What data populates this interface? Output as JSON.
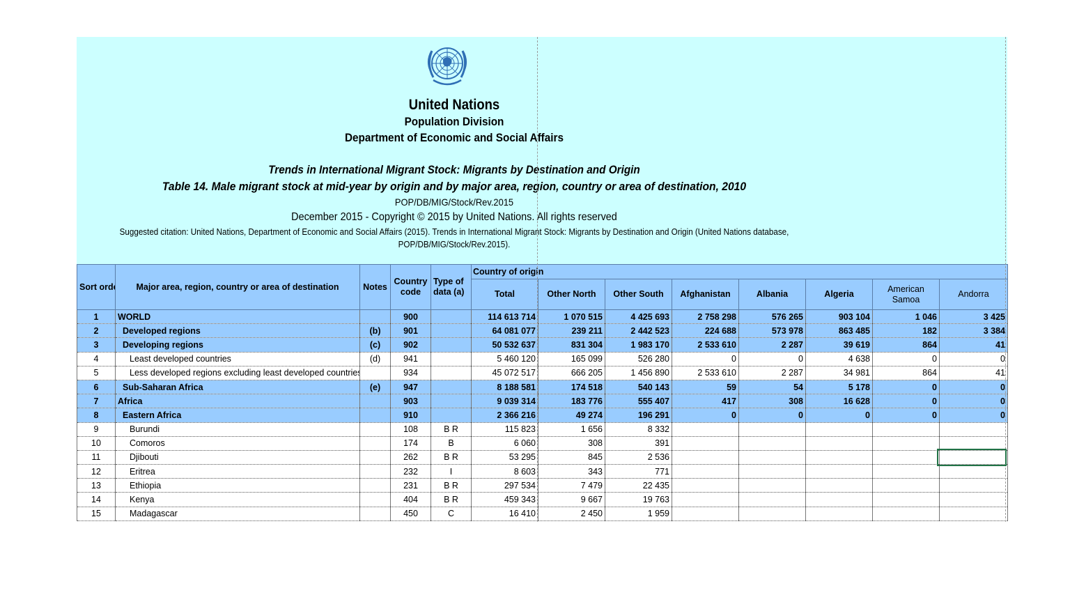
{
  "header": {
    "organization": "United Nations",
    "division": "Population Division",
    "department": "Department of Economic and Social Affairs",
    "report_title": "Trends in International Migrant Stock: Migrants by Destination and Origin",
    "table_title": "Table 14. Male migrant stock at mid-year by origin and by major area, region, country or area of destination, 2010",
    "code": "POP/DB/MIG/Stock/Rev.2015",
    "copyright": "December 2015 - Copyright © 2015 by United Nations. All rights reserved",
    "citation_line1": "Suggested citation: United Nations, Department of Economic and Social Affairs (2015). Trends in International Migrant Stock: Migrants by Destination and Origin (United Nations database,",
    "citation_line2": "POP/DB/MIG/Stock/Rev.2015)."
  },
  "table": {
    "headers": {
      "sort": "Sort order",
      "area": "Major area, region, country or area of destination",
      "notes": "Notes",
      "code": "Country code",
      "type": "Type of data (a)",
      "origin_group": "Country of origin",
      "total": "Total",
      "other_north": "Other North",
      "other_south": "Other South",
      "afghanistan": "Afghanistan",
      "albania": "Albania",
      "algeria": "Algeria",
      "american_samoa": "American Samoa",
      "andorra": "Andorra"
    },
    "rows": [
      {
        "sort": "1",
        "area": "WORLD",
        "notes": "",
        "code": "900",
        "type": "",
        "total": "114 613 714",
        "on": "1 070 515",
        "os": "4 425 693",
        "afg": "2 758 298",
        "alb": "576 265",
        "alg": "903 104",
        "asm": "1 046",
        "and": "3 425",
        "style": "blue",
        "indent": 0
      },
      {
        "sort": "2",
        "area": "Developed regions",
        "notes": "(b)",
        "code": "901",
        "type": "",
        "total": "64 081 077",
        "on": "239 211",
        "os": "2 442 523",
        "afg": "224 688",
        "alb": "573 978",
        "alg": "863 485",
        "asm": "182",
        "and": "3 384",
        "style": "blue",
        "indent": 1
      },
      {
        "sort": "3",
        "area": "Developing regions",
        "notes": "(c)",
        "code": "902",
        "type": "",
        "total": "50 532 637",
        "on": "831 304",
        "os": "1 983 170",
        "afg": "2 533 610",
        "alb": "2 287",
        "alg": "39 619",
        "asm": "864",
        "and": "41",
        "style": "blue",
        "indent": 1
      },
      {
        "sort": "4",
        "area": "Least developed countries",
        "notes": "(d)",
        "code": "941",
        "type": "",
        "total": "5 460 120",
        "on": "165 099",
        "os": "526 280",
        "afg": "0",
        "alb": "0",
        "alg": "4 638",
        "asm": "0",
        "and": "0",
        "style": "white",
        "indent": 2
      },
      {
        "sort": "5",
        "area": "Less developed regions excluding least developed countries",
        "notes": "",
        "code": "934",
        "type": "",
        "total": "45 072 517",
        "on": "666 205",
        "os": "1 456 890",
        "afg": "2 533 610",
        "alb": "2 287",
        "alg": "34 981",
        "asm": "864",
        "and": "41",
        "style": "white",
        "indent": 2
      },
      {
        "sort": "6",
        "area": "Sub-Saharan Africa",
        "notes": "(e)",
        "code": "947",
        "type": "",
        "total": "8 188 581",
        "on": "174 518",
        "os": "540 143",
        "afg": "59",
        "alb": "54",
        "alg": "5 178",
        "asm": "0",
        "and": "0",
        "style": "blue",
        "indent": 1
      },
      {
        "sort": "7",
        "area": "Africa",
        "notes": "",
        "code": "903",
        "type": "",
        "total": "9 039 314",
        "on": "183 776",
        "os": "555 407",
        "afg": "417",
        "alb": "308",
        "alg": "16 628",
        "asm": "0",
        "and": "0",
        "style": "blue",
        "indent": 0
      },
      {
        "sort": "8",
        "area": "Eastern Africa",
        "notes": "",
        "code": "910",
        "type": "",
        "total": "2 366 216",
        "on": "49 274",
        "os": "196 291",
        "afg": "0",
        "alb": "0",
        "alg": "0",
        "asm": "0",
        "and": "0",
        "style": "blue",
        "indent": 1
      },
      {
        "sort": "9",
        "area": "Burundi",
        "notes": "",
        "code": "108",
        "type": "B R",
        "total": "115 823",
        "on": "1 656",
        "os": "8 332",
        "afg": "",
        "alb": "",
        "alg": "",
        "asm": "",
        "and": "",
        "style": "white",
        "indent": 2
      },
      {
        "sort": "10",
        "area": "Comoros",
        "notes": "",
        "code": "174",
        "type": "B",
        "total": "6 060",
        "on": "308",
        "os": "391",
        "afg": "",
        "alb": "",
        "alg": "",
        "asm": "",
        "and": "",
        "style": "white",
        "indent": 2
      },
      {
        "sort": "11",
        "area": "Djibouti",
        "notes": "",
        "code": "262",
        "type": "B R",
        "total": "53 295",
        "on": "845",
        "os": "2 536",
        "afg": "",
        "alb": "",
        "alg": "",
        "asm": "",
        "and": "",
        "style": "white",
        "indent": 2
      },
      {
        "sort": "12",
        "area": "Eritrea",
        "notes": "",
        "code": "232",
        "type": "I",
        "total": "8 603",
        "on": "343",
        "os": "771",
        "afg": "",
        "alb": "",
        "alg": "",
        "asm": "",
        "and": "",
        "style": "white",
        "indent": 2
      },
      {
        "sort": "13",
        "area": "Ethiopia",
        "notes": "",
        "code": "231",
        "type": "B R",
        "total": "297 534",
        "on": "7 479",
        "os": "22 435",
        "afg": "",
        "alb": "",
        "alg": "",
        "asm": "",
        "and": "",
        "style": "white",
        "indent": 2
      },
      {
        "sort": "14",
        "area": "Kenya",
        "notes": "",
        "code": "404",
        "type": "B R",
        "total": "459 343",
        "on": "9 667",
        "os": "19 763",
        "afg": "",
        "alb": "",
        "alg": "",
        "asm": "",
        "and": "",
        "style": "white",
        "indent": 2
      },
      {
        "sort": "15",
        "area": "Madagascar",
        "notes": "",
        "code": "450",
        "type": "C",
        "total": "16 410",
        "on": "2 450",
        "os": "1 959",
        "afg": "",
        "alb": "",
        "alg": "",
        "asm": "",
        "and": "",
        "style": "white",
        "indent": 2
      }
    ]
  },
  "colors": {
    "header_background": "#ccffff",
    "highlight_row": "#99ccff",
    "selection_border": "#217346"
  },
  "icons": {
    "logo": "united-nations-emblem"
  }
}
